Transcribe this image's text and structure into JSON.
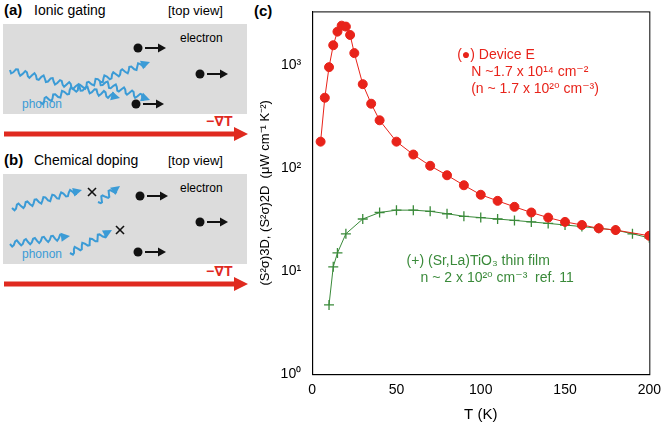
{
  "diagrams": [
    {
      "label": "(a)",
      "title": "Ionic gating",
      "view": "[top view]",
      "electron": "electron",
      "phonon": "phonon",
      "gradient": "−∇T"
    },
    {
      "label": "(b)",
      "title": "Chemical doping",
      "view": "[top view]",
      "electron": "electron",
      "phonon": "phonon",
      "gradient": "−∇T"
    }
  ],
  "chart_data": {
    "type": "line",
    "panel": "(c)",
    "x_label": "T (K)",
    "y_label": "(S²σ)3D, (S²σ)2D  (μW cm⁻¹ K⁻²)",
    "log": "y",
    "grid": false,
    "xlim": [
      0,
      200
    ],
    "xticks": [
      0,
      50,
      100,
      150,
      200
    ],
    "ylim": [
      1,
      3300
    ],
    "yticks": [
      {
        "value": 1,
        "label": "10⁰"
      },
      {
        "value": 10,
        "label": "10¹"
      },
      {
        "value": 100,
        "label": "10²"
      },
      {
        "value": 1000,
        "label": "10³"
      }
    ],
    "series": [
      {
        "name": "Device E",
        "color": "#e8231a",
        "marker": "circle",
        "x": [
          5,
          7.5,
          10,
          12.5,
          15,
          17.5,
          20,
          22.5,
          25,
          30,
          35,
          40,
          50,
          60,
          70,
          80,
          90,
          100,
          110,
          120,
          130,
          140,
          150,
          160,
          170,
          180,
          200
        ],
        "values": [
          180,
          480,
          950,
          1550,
          2100,
          2400,
          2350,
          1950,
          1300,
          650,
          420,
          290,
          180,
          135,
          105,
          85,
          68,
          55,
          48,
          42,
          37,
          33,
          30,
          28,
          26,
          25,
          22
        ]
      },
      {
        "name": "(Sr,La)TiO₃ thin film",
        "color": "#3a8a3a",
        "marker": "cross",
        "x": [
          10,
          12.5,
          15,
          20,
          30,
          40,
          50,
          60,
          70,
          80,
          90,
          100,
          110,
          120,
          130,
          140,
          150,
          160,
          170,
          180,
          190,
          200
        ],
        "values": [
          4.7,
          11,
          15,
          23,
          32,
          37,
          39,
          39,
          38,
          36,
          34,
          33,
          32,
          31,
          30,
          29,
          28,
          27,
          26,
          25,
          23,
          21
        ]
      }
    ],
    "annotations": [
      {
        "lines": [
          "(●) Device E",
          "N ~1.7 x 10¹⁴ cm⁻²",
          "(n ~ 1.7 x 10²⁰ cm⁻³)"
        ],
        "color": "#e8231a"
      },
      {
        "lines": [
          "(+) (Sr,La)TiO₃ thin film",
          "n ~ 2 x 10²⁰ cm⁻³  ref. 11"
        ],
        "color": "#3a8a3a"
      }
    ]
  }
}
